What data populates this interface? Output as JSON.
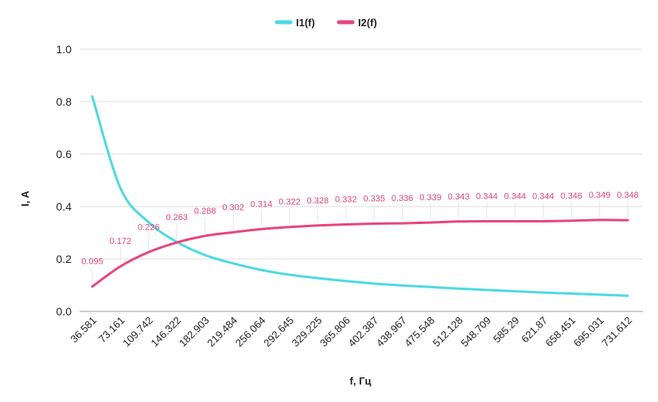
{
  "chart_data": {
    "type": "line",
    "x": [
      "36.581",
      "73.161",
      "109.742",
      "146.322",
      "182.903",
      "219.484",
      "256.064",
      "292.645",
      "329.225",
      "365.806",
      "402.387",
      "438.967",
      "475.548",
      "512.128",
      "548.709",
      "585.29",
      "621.87",
      "658.451",
      "695.031",
      "731.612"
    ],
    "xlabel": "f, Гц",
    "ylabel": "I, A",
    "ylim": [
      0,
      1.0
    ],
    "yticks": [
      "0.0",
      "0.2",
      "0.4",
      "0.6",
      "0.8",
      "1.0"
    ],
    "grid": true,
    "legend_position": "top-center",
    "series": [
      {
        "name": "I1(f)",
        "color": "#4dd9e3",
        "values": [
          0.82,
          0.47,
          0.34,
          0.265,
          0.215,
          0.183,
          0.158,
          0.14,
          0.127,
          0.116,
          0.106,
          0.099,
          0.093,
          0.087,
          0.082,
          0.077,
          0.072,
          0.068,
          0.064,
          0.06
        ]
      },
      {
        "name": "I2(f)",
        "color": "#e8457c",
        "values": [
          0.095,
          0.172,
          0.226,
          0.263,
          0.288,
          0.302,
          0.314,
          0.322,
          0.328,
          0.332,
          0.335,
          0.336,
          0.339,
          0.343,
          0.344,
          0.344,
          0.344,
          0.346,
          0.349,
          0.348
        ],
        "data_labels": [
          "0.095",
          "0.172",
          "0.226",
          "0.263",
          "0.288",
          "0.302",
          "0.314",
          "0.322",
          "0.328",
          "0.332",
          "0.335",
          "0.336",
          "0.339",
          "0.343",
          "0.344",
          "0.344",
          "0.344",
          "0.346",
          "0.349",
          "0.348"
        ]
      }
    ]
  }
}
